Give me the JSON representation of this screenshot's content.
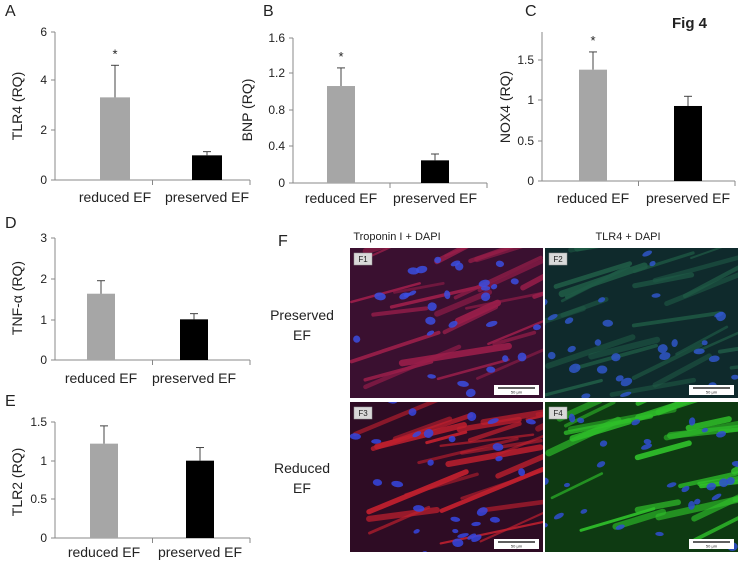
{
  "figure_label": "Fig 4",
  "chart_data": [
    {
      "panel": "A",
      "type": "bar",
      "ylabel": "TLR4 (RQ)",
      "categories": [
        "reduced EF",
        "preserved EF"
      ],
      "values": [
        3.35,
        1.0
      ],
      "errors": [
        1.3,
        0.15
      ],
      "colors": [
        "#a6a6a6",
        "#000000"
      ],
      "ylim": [
        0,
        6
      ],
      "yticks": [
        "0",
        "2",
        "4",
        "6"
      ],
      "significance": [
        "*",
        ""
      ]
    },
    {
      "panel": "B",
      "type": "bar",
      "ylabel": "BNP (RQ)",
      "categories": [
        "reduced EF",
        "preserved EF"
      ],
      "values": [
        1.07,
        0.25
      ],
      "errors": [
        0.2,
        0.07
      ],
      "colors": [
        "#a6a6a6",
        "#000000"
      ],
      "ylim": [
        0,
        1.6
      ],
      "yticks": [
        "0",
        "0.4",
        "0.8",
        "1.2",
        "1.6"
      ],
      "significance": [
        "*",
        ""
      ]
    },
    {
      "panel": "C",
      "type": "bar",
      "ylabel": "NOX4 (RQ)",
      "categories": [
        "reduced EF",
        "preserved EF"
      ],
      "values": [
        1.38,
        0.93
      ],
      "errors": [
        0.22,
        0.12
      ],
      "colors": [
        "#a6a6a6",
        "#000000"
      ],
      "ylim": [
        0,
        2
      ],
      "yticks": [
        "0",
        "0.5",
        "1",
        "1.5"
      ],
      "significance": [
        "*",
        ""
      ]
    },
    {
      "panel": "D",
      "type": "bar",
      "ylabel": "TNF-α (RQ)",
      "categories": [
        "reduced EF",
        "preserved EF"
      ],
      "values": [
        1.63,
        1.0
      ],
      "errors": [
        0.32,
        0.14
      ],
      "colors": [
        "#a6a6a6",
        "#000000"
      ],
      "ylim": [
        0,
        3
      ],
      "yticks": [
        "0",
        "1",
        "2",
        "3"
      ],
      "significance": [
        "",
        ""
      ]
    },
    {
      "panel": "E",
      "type": "bar",
      "ylabel": "TLR2 (RQ)",
      "categories": [
        "reduced EF",
        "preserved EF"
      ],
      "values": [
        1.22,
        1.0
      ],
      "errors": [
        0.23,
        0.17
      ],
      "colors": [
        "#a6a6a6",
        "#000000"
      ],
      "ylim": [
        0,
        1.5
      ],
      "yticks": [
        "0",
        "0.5",
        "1",
        "1.5"
      ],
      "significance": [
        "",
        ""
      ]
    }
  ],
  "micrographs": {
    "panel": "F",
    "column_headers": [
      "Troponin I + DAPI",
      "TLR4 +  DAPI"
    ],
    "row_labels": [
      [
        "Preserved",
        "EF"
      ],
      [
        "Reduced",
        "EF"
      ]
    ],
    "tiles": [
      {
        "tag": "F1",
        "stain": "troponin",
        "scale_bar": "50 µm",
        "base": "#3a1030",
        "fiber": "#9a1e4a",
        "nuclei": "#3b4ee0"
      },
      {
        "tag": "F2",
        "stain": "tlr4",
        "scale_bar": "50 µm",
        "base": "#0f2a2c",
        "fiber": "#1f5a45",
        "nuclei": "#2f56c8"
      },
      {
        "tag": "F3",
        "stain": "troponin",
        "scale_bar": "50 µm",
        "base": "#2e0c24",
        "fiber": "#c0202e",
        "nuclei": "#3546e0"
      },
      {
        "tag": "F4",
        "stain": "tlr4",
        "scale_bar": "50 µm",
        "base": "#0e3a12",
        "fiber": "#2fbf2a",
        "nuclei": "#2f4fd0"
      }
    ]
  }
}
